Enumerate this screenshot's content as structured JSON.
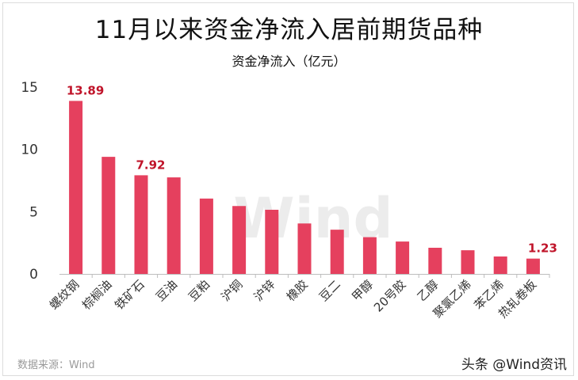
{
  "title": "11月以来资金净流入居前期货品种",
  "subtitle": "资金净流入（亿元）",
  "source": "数据来源：Wind",
  "brand": "头条 @Wind资讯",
  "watermark": "Wind",
  "colors": {
    "bar": "#e5405e",
    "label": "#c0142a",
    "axis": "#555555"
  },
  "chart_data": {
    "type": "bar",
    "title": "11月以来资金净流入居前期货品种",
    "ylabel": "资金净流入（亿元）",
    "ylim": [
      0,
      15
    ],
    "yticks": [
      0,
      5,
      10,
      15
    ],
    "grid": false,
    "categories": [
      "螺纹钢",
      "棕榈油",
      "铁矿石",
      "豆油",
      "豆粕",
      "沪铜",
      "沪锌",
      "橡胶",
      "豆二",
      "甲醇",
      "20号胶",
      "乙醇",
      "聚氯乙烯",
      "苯乙烯",
      "热轧卷板"
    ],
    "values": [
      13.89,
      9.4,
      7.92,
      7.75,
      6.05,
      5.45,
      5.15,
      4.05,
      3.55,
      2.95,
      2.6,
      2.1,
      1.9,
      1.4,
      1.23
    ],
    "data_labels": [
      {
        "index": 0,
        "text": "13.89"
      },
      {
        "index": 2,
        "text": "7.92"
      },
      {
        "index": 14,
        "text": "1.23"
      }
    ]
  }
}
